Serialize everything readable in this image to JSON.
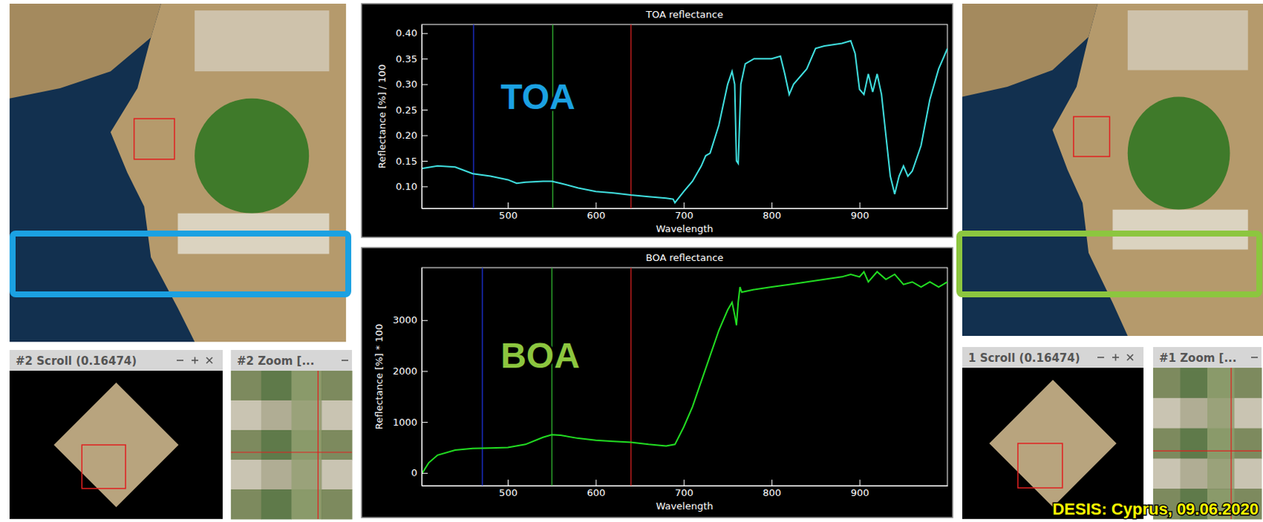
{
  "chart_data": [
    {
      "type": "line",
      "title": "TOA reflectance",
      "xlabel": "Wavelength",
      "ylabel": "Reflectance [%] / 100",
      "color": "#40e0e0",
      "x": [
        402,
        420,
        440,
        460,
        480,
        500,
        510,
        520,
        540,
        550,
        560,
        580,
        600,
        620,
        640,
        660,
        680,
        688,
        690,
        700,
        710,
        720,
        725,
        730,
        740,
        750,
        755,
        758,
        760,
        762,
        765,
        770,
        780,
        800,
        810,
        815,
        820,
        825,
        840,
        850,
        860,
        880,
        890,
        895,
        900,
        905,
        910,
        915,
        920,
        925,
        930,
        935,
        940,
        945,
        950,
        955,
        960,
        970,
        980,
        990,
        1000
      ],
      "values": [
        0.135,
        0.14,
        0.138,
        0.125,
        0.12,
        0.113,
        0.106,
        0.108,
        0.11,
        0.11,
        0.106,
        0.097,
        0.09,
        0.087,
        0.083,
        0.08,
        0.077,
        0.075,
        0.068,
        0.09,
        0.11,
        0.14,
        0.16,
        0.165,
        0.22,
        0.3,
        0.325,
        0.3,
        0.15,
        0.145,
        0.3,
        0.34,
        0.35,
        0.35,
        0.355,
        0.32,
        0.28,
        0.3,
        0.33,
        0.37,
        0.375,
        0.38,
        0.385,
        0.36,
        0.29,
        0.28,
        0.32,
        0.285,
        0.32,
        0.28,
        0.2,
        0.12,
        0.085,
        0.12,
        0.14,
        0.12,
        0.13,
        0.18,
        0.27,
        0.33,
        0.37
      ],
      "xlim": [
        402,
        1000
      ],
      "xticks": [
        500,
        600,
        700,
        800,
        900
      ],
      "ylim": [
        0.057,
        0.417
      ],
      "yticks": [
        {
          "value": 0.1,
          "label": "0.10"
        },
        0.15,
        {
          "value": 0.2,
          "label": "0.20"
        },
        0.25,
        {
          "value": 0.3,
          "label": "0.30"
        },
        0.35,
        {
          "value": 0.4,
          "label": "0.40"
        }
      ],
      "band_lines": [
        {
          "x": 461,
          "color": "#1c2fd0"
        },
        {
          "x": 551,
          "color": "#2fb02f"
        },
        {
          "x": 640,
          "color": "#d02020"
        }
      ],
      "annotations": [
        {
          "text": "TOA",
          "color": "#1ba1e2"
        }
      ]
    },
    {
      "type": "line",
      "title": "BOA reflectance",
      "xlabel": "Wavelength",
      "ylabel": "Reflectance [%] * 100",
      "color": "#22dd22",
      "x": [
        402,
        410,
        420,
        440,
        460,
        480,
        500,
        520,
        540,
        550,
        560,
        580,
        600,
        620,
        640,
        660,
        680,
        690,
        700,
        710,
        720,
        730,
        740,
        750,
        755,
        758,
        760,
        762,
        764,
        766,
        780,
        800,
        820,
        840,
        860,
        880,
        890,
        900,
        905,
        910,
        920,
        930,
        940,
        950,
        960,
        970,
        980,
        990,
        1000
      ],
      "values": [
        -20,
        200,
        350,
        450,
        480,
        490,
        500,
        560,
        700,
        750,
        740,
        680,
        640,
        620,
        600,
        560,
        530,
        560,
        900,
        1300,
        1800,
        2300,
        2800,
        3200,
        3350,
        3100,
        2900,
        3350,
        3650,
        3550,
        3600,
        3650,
        3700,
        3750,
        3800,
        3850,
        3900,
        3850,
        3950,
        3750,
        3950,
        3800,
        3900,
        3700,
        3750,
        3650,
        3750,
        3650,
        3750
      ],
      "xlim": [
        402,
        1000
      ],
      "xticks": [
        500,
        600,
        700,
        800,
        900
      ],
      "ylim": [
        -250,
        4030
      ],
      "yticks": [
        0,
        1000,
        2000,
        3000
      ],
      "band_lines": [
        {
          "x": 471,
          "color": "#1c2fd0"
        },
        {
          "x": 550,
          "color": "#2fb02f"
        },
        {
          "x": 640,
          "color": "#d02020"
        }
      ],
      "annotations": [
        {
          "text": "BOA",
          "color": "#8cc63f"
        }
      ]
    }
  ],
  "screenshot": {
    "windows": [
      "#2 Scroll (0.16474)",
      "#2 Zoom [...",
      "1 Scroll (0.16474)",
      "#1 Zoom [..."
    ],
    "caption": "DESIS: Cyprus, 09.06.2020"
  }
}
